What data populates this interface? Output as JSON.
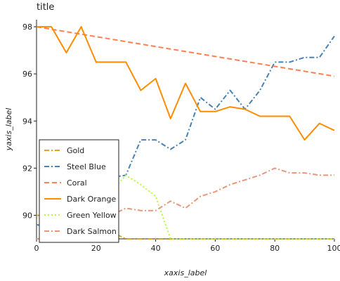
{
  "chart_data": {
    "type": "line",
    "title": "title",
    "xlabel": "xaxis_label",
    "ylabel": "yaxis_label",
    "xlim": [
      0,
      100
    ],
    "ylim": [
      89,
      98.3
    ],
    "xticks": [
      0,
      20,
      40,
      60,
      80,
      100
    ],
    "yticks": [
      90,
      92,
      94,
      96,
      98
    ],
    "grid": false,
    "legend_position": "left",
    "series": [
      {
        "name": "Gold",
        "color": "#DAA520",
        "style": "dashdot",
        "x": [
          0,
          10,
          20,
          30,
          40,
          50,
          60,
          70,
          80,
          90,
          100
        ],
        "y": [
          90.0,
          90.0,
          89.6,
          89.0,
          89.0,
          89.0,
          89.0,
          89.0,
          89.0,
          89.0,
          89.0
        ]
      },
      {
        "name": "Steel Blue",
        "color": "#4682B4",
        "style": "dashdot",
        "x": [
          0,
          5,
          10,
          15,
          20,
          25,
          30,
          35,
          40,
          45,
          50,
          55,
          60,
          65,
          70,
          75,
          80,
          85,
          90,
          95,
          100
        ],
        "y": [
          89.6,
          89.5,
          90.2,
          89.6,
          90.2,
          91.6,
          91.7,
          93.2,
          93.2,
          92.8,
          93.2,
          95.0,
          94.5,
          95.3,
          94.5,
          95.3,
          96.5,
          96.5,
          96.7,
          96.7,
          97.6
        ]
      },
      {
        "name": "Coral",
        "color": "#FF7F50",
        "style": "dashed",
        "x": [
          0,
          100
        ],
        "y": [
          98.0,
          95.9
        ]
      },
      {
        "name": "Dark Orange",
        "color": "#FF8C00",
        "style": "solid",
        "x": [
          0,
          5,
          10,
          15,
          20,
          25,
          30,
          35,
          40,
          45,
          50,
          55,
          60,
          65,
          70,
          75,
          80,
          85,
          90,
          95,
          100
        ],
        "y": [
          98.0,
          98.0,
          96.9,
          98.0,
          96.5,
          96.5,
          96.5,
          95.3,
          95.8,
          94.1,
          95.6,
          94.4,
          94.4,
          94.6,
          94.5,
          94.2,
          94.2,
          94.2,
          93.2,
          93.9,
          93.6
        ]
      },
      {
        "name": "Green Yellow",
        "color": "#ADFF2F",
        "style": "dotted",
        "x": [
          0,
          5,
          10,
          15,
          20,
          25,
          30,
          35,
          40,
          45,
          50,
          55,
          60,
          65,
          70,
          75,
          80,
          85,
          90,
          95,
          100
        ],
        "y": [
          89.0,
          89.1,
          89.2,
          89.0,
          89.3,
          91.0,
          91.7,
          91.3,
          90.8,
          89.0,
          89.0,
          89.0,
          89.0,
          89.0,
          89.0,
          89.0,
          89.0,
          89.0,
          89.0,
          89.0,
          89.0
        ]
      },
      {
        "name": "Dark Salmon",
        "color": "#E9967A",
        "style": "dashdot",
        "x": [
          0,
          5,
          10,
          15,
          20,
          25,
          30,
          35,
          40,
          45,
          50,
          55,
          60,
          65,
          70,
          75,
          80,
          85,
          90,
          95,
          100
        ],
        "y": [
          89.0,
          89.0,
          89.0,
          89.0,
          89.0,
          90.0,
          90.3,
          90.2,
          90.2,
          90.6,
          90.3,
          90.8,
          91.0,
          91.3,
          91.5,
          91.7,
          92.0,
          91.8,
          91.8,
          91.7,
          91.7
        ]
      }
    ]
  }
}
